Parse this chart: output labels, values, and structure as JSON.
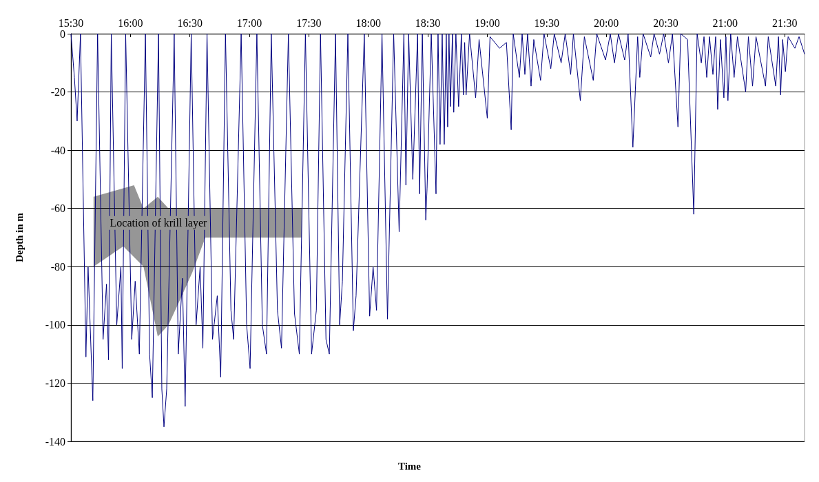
{
  "chart_data": {
    "type": "line",
    "xlabel": "Time",
    "ylabel": "Depth in m",
    "xlim": [
      15.5,
      21.667
    ],
    "ylim": [
      -140,
      0
    ],
    "xticks": [
      {
        "value": 15.5,
        "label": "15:30"
      },
      {
        "value": 16,
        "label": "16:00"
      },
      {
        "value": 16.5,
        "label": "16:30"
      },
      {
        "value": 17,
        "label": "17:00"
      },
      {
        "value": 17.5,
        "label": "17:30"
      },
      {
        "value": 18,
        "label": "18:00"
      },
      {
        "value": 18.5,
        "label": "18:30"
      },
      {
        "value": 19,
        "label": "19:00"
      },
      {
        "value": 19.5,
        "label": "19:30"
      },
      {
        "value": 20,
        "label": "20:00"
      },
      {
        "value": 20.5,
        "label": "20:30"
      },
      {
        "value": 21,
        "label": "21:00"
      },
      {
        "value": 21.5,
        "label": "21:30"
      }
    ],
    "yticks": [
      -140,
      -120,
      -100,
      -80,
      -60,
      -40,
      -20,
      0
    ],
    "grid": "y",
    "marker": "none",
    "line_style": "solid",
    "annotations": [
      {
        "text": "Location of krill layer",
        "x": 15.81,
        "y": -65
      }
    ],
    "series": [
      {
        "color": "#000080",
        "x": [
          15.5,
          15.529,
          15.552,
          15.58,
          15.626,
          15.644,
          15.684,
          15.724,
          15.77,
          15.799,
          15.816,
          15.839,
          15.885,
          15.92,
          15.931,
          15.96,
          16.011,
          16.04,
          16.075,
          16.126,
          16.161,
          16.184,
          16.236,
          16.264,
          16.282,
          16.305,
          16.368,
          16.402,
          16.437,
          16.46,
          16.511,
          16.552,
          16.586,
          16.609,
          16.644,
          16.69,
          16.73,
          16.759,
          16.799,
          16.845,
          16.868,
          16.931,
          16.977,
          17.006,
          17.063,
          17.109,
          17.144,
          17.184,
          17.236,
          17.27,
          17.328,
          17.379,
          17.42,
          17.471,
          17.523,
          17.563,
          17.598,
          17.644,
          17.672,
          17.724,
          17.759,
          17.782,
          17.828,
          17.874,
          17.897,
          17.966,
          18.011,
          18.04,
          18.069,
          18.115,
          18.161,
          18.213,
          18.259,
          18.299,
          18.316,
          18.339,
          18.374,
          18.414,
          18.431,
          18.454,
          18.483,
          18.494,
          18.529,
          18.569,
          18.586,
          18.603,
          18.621,
          18.638,
          18.655,
          18.667,
          18.678,
          18.69,
          18.707,
          18.718,
          18.736,
          18.759,
          18.782,
          18.799,
          18.81,
          18.822,
          18.851,
          18.902,
          18.931,
          19.0,
          19.023,
          19.103,
          19.161,
          19.201,
          19.218,
          19.27,
          19.293,
          19.316,
          19.339,
          19.368,
          19.391,
          19.448,
          19.477,
          19.534,
          19.563,
          19.621,
          19.655,
          19.701,
          19.724,
          19.782,
          19.816,
          19.891,
          19.92,
          19.994,
          20.034,
          20.069,
          20.103,
          20.155,
          20.184,
          20.224,
          20.264,
          20.282,
          20.31,
          20.374,
          20.402,
          20.448,
          20.483,
          20.523,
          20.557,
          20.603,
          20.626,
          20.684,
          20.736,
          20.764,
          20.799,
          20.822,
          20.845,
          20.868,
          20.897,
          20.92,
          20.937,
          20.96,
          20.989,
          21.006,
          21.023,
          21.046,
          21.075,
          21.103,
          21.172,
          21.195,
          21.23,
          21.259,
          21.339,
          21.362,
          21.425,
          21.448,
          21.466,
          21.483,
          21.506,
          21.529,
          21.586,
          21.621,
          21.667
        ],
        "values": [
          0,
          -15,
          -30,
          0,
          -111,
          -80,
          -126,
          0,
          -105,
          -86,
          -112,
          0,
          -100,
          -80,
          -115,
          0,
          -105,
          -85,
          -110,
          0,
          -110,
          -125,
          0,
          -122,
          -135,
          -122,
          0,
          -110,
          -84,
          -128,
          0,
          -100,
          -80,
          -108,
          0,
          -105,
          -90,
          -118,
          0,
          -95,
          -105,
          0,
          -100,
          -115,
          0,
          -100,
          -110,
          0,
          -95,
          -108,
          0,
          -96,
          -110,
          0,
          -110,
          -95,
          0,
          -105,
          -110,
          0,
          -100,
          -85,
          0,
          -102,
          -90,
          0,
          -97,
          -80,
          -95,
          0,
          -98,
          0,
          -68,
          0,
          -52,
          0,
          -50,
          0,
          -55,
          0,
          -64,
          -53,
          0,
          -55,
          0,
          -38,
          0,
          -38,
          0,
          -32,
          0,
          -25,
          0,
          -27,
          0,
          -25,
          0,
          -21,
          -3,
          -21,
          0,
          -22,
          -2,
          -29,
          -1,
          -5,
          -3,
          -33,
          0,
          -15,
          0,
          -14,
          0,
          -18,
          -2,
          -16,
          0,
          -12,
          0,
          -10,
          0,
          -14,
          0,
          -23,
          -1,
          -16,
          0,
          -9,
          0,
          -10,
          0,
          -9,
          0,
          -39,
          -1,
          -15,
          0,
          -8,
          0,
          -7,
          0,
          -10,
          0,
          -32,
          0,
          -2,
          -62,
          0,
          -10,
          -1,
          -15,
          -1,
          -14,
          -1,
          -26,
          -2,
          -22,
          -1,
          -23,
          0,
          -15,
          -1,
          -20,
          -1,
          -18,
          -1,
          -18,
          -1,
          -18,
          -1,
          -21,
          -2,
          -13,
          -1,
          -5,
          -1,
          -7
        ]
      }
    ]
  }
}
